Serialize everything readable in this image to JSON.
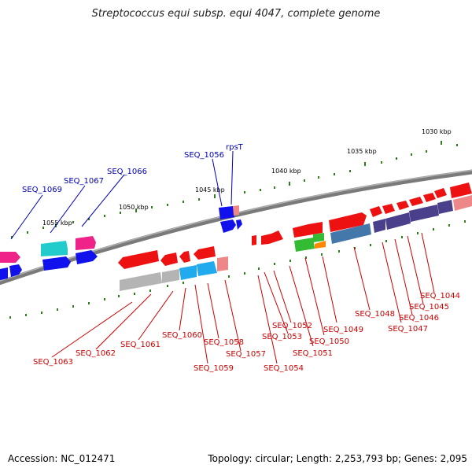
{
  "title": "Streptococcus equi subsp. equi 4047, complete genome",
  "footer": {
    "accession": "Accession: NC_012471",
    "topology": "Topology: circular; Length: 2,253,793 bp; Genes: 2,095"
  },
  "kbp_labels": [
    "1030 kbp",
    "1035 kbp",
    "1040 kbp",
    "1045 kbp",
    "1050 kbp",
    "1055 kbp"
  ],
  "upper_labels": [
    "SEQ_1056",
    "rpsT",
    "SEQ_1066",
    "SEQ_1067",
    "SEQ_1069"
  ],
  "lower_labels": [
    "SEQ_1044",
    "SEQ_1045",
    "SEQ_1046",
    "SEQ_1047",
    "SEQ_1048",
    "SEQ_1049",
    "SEQ_1050",
    "SEQ_1051",
    "SEQ_1052",
    "SEQ_1053",
    "SEQ_1054",
    "SEQ_1057",
    "SEQ_1058",
    "SEQ_1059",
    "SEQ_1060",
    "SEQ_1061",
    "SEQ_1062",
    "SEQ_1063"
  ],
  "colors": {
    "backbone": "#808080",
    "label_red": "#cc0000",
    "label_blue": "#0000bb",
    "tick_green": "#2e7d1e",
    "gene_red": "#ee1111",
    "gene_blue": "#1111ee",
    "gene_cyan": "#22cccc",
    "gene_pink": "#ee2288",
    "gene_gray": "#b4b4b4",
    "gene_steel": "#4477aa",
    "gene_purple": "#4a3f8a",
    "gene_green": "#33bb33",
    "gene_orange": "#ff8800",
    "gene_salmon": "#ee8888",
    "gene_skyblue": "#22aaee"
  }
}
